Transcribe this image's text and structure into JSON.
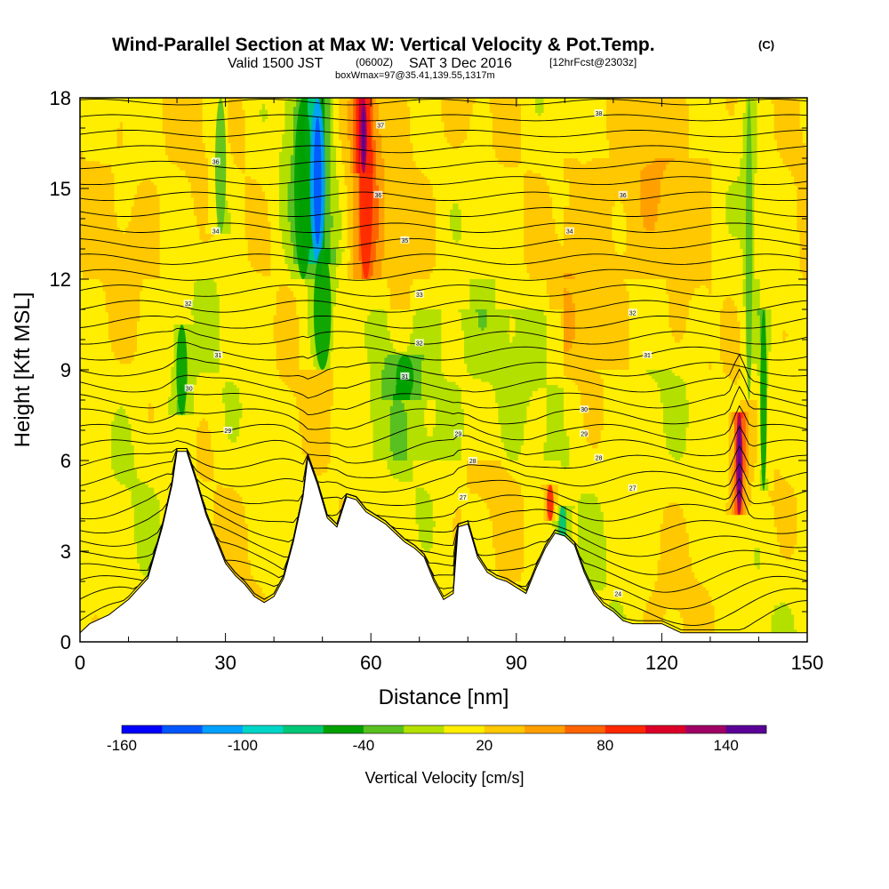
{
  "header": {
    "title": "Wind-Parallel Section at Max W: Vertical Velocity & Pot.Temp.",
    "title_mark": "(C)",
    "valid_prefix": "Valid 1500 JST",
    "valid_utc": "(0600Z)",
    "valid_date": "SAT 3 Dec 2016",
    "forecast_tag": "[12hrFcst@2303z]",
    "box_info": "boxWmax=97@35.41,139.55,1317m"
  },
  "chart_data": {
    "type": "heatmap",
    "title": "Wind-Parallel Section at Max W: Vertical Velocity & Pot.Temp.",
    "xlabel": "Distance [nm]",
    "ylabel": "Height [Kft MSL]",
    "xlim": [
      0,
      150
    ],
    "ylim": [
      0,
      18
    ],
    "x_ticks": [
      "0",
      "30",
      "60",
      "90",
      "120",
      "150"
    ],
    "y_ticks": [
      "0",
      "3",
      "6",
      "9",
      "12",
      "15",
      "18"
    ],
    "colorbar": {
      "label": "Vertical Velocity [cm/s]",
      "tick_labels": [
        "-160",
        "-100",
        "-40",
        "20",
        "80",
        "140"
      ],
      "tick_values": [
        -160,
        -100,
        -40,
        20,
        80,
        140
      ],
      "range": [
        -160,
        160
      ],
      "colors": [
        "#0000ff",
        "#0055ff",
        "#00a0ff",
        "#00d6c8",
        "#00c878",
        "#00a000",
        "#58c020",
        "#b4e000",
        "#ffee00",
        "#ffc800",
        "#ffa000",
        "#ff6400",
        "#ff2800",
        "#dc0028",
        "#a00064",
        "#5a0096"
      ]
    },
    "terrain": {
      "description": "terrain profile (kft MSL) along distance",
      "x": [
        0,
        2,
        6,
        10,
        14,
        17,
        19,
        20,
        22,
        24,
        26,
        28,
        30,
        32,
        34,
        36,
        38,
        40,
        42,
        44,
        46,
        47,
        49,
        51,
        53,
        55,
        57,
        59,
        61,
        63,
        65,
        67,
        69,
        71,
        73,
        75,
        77,
        78,
        80,
        82,
        84,
        86,
        88,
        90,
        92,
        94,
        96,
        98,
        100,
        102,
        104,
        106,
        108,
        110,
        112,
        114,
        116,
        118,
        120,
        124,
        128,
        132,
        136,
        140,
        145,
        150
      ],
      "height": [
        0.3,
        0.6,
        0.9,
        1.4,
        2.1,
        3.8,
        5.2,
        6.3,
        6.3,
        5.3,
        4.2,
        3.4,
        2.6,
        2.2,
        1.9,
        1.5,
        1.3,
        1.5,
        2.1,
        3.3,
        4.8,
        6.1,
        5.2,
        4.1,
        3.8,
        4.8,
        4.7,
        4.3,
        4.1,
        3.9,
        3.6,
        3.3,
        3.1,
        2.8,
        2.0,
        1.4,
        1.6,
        3.8,
        3.9,
        2.8,
        2.3,
        2.1,
        2.0,
        1.8,
        1.6,
        2.4,
        3.1,
        3.6,
        3.5,
        3.2,
        2.3,
        1.6,
        1.2,
        1.0,
        0.7,
        0.6,
        0.6,
        0.6,
        0.6,
        0.3,
        0.3,
        0.3,
        0.3,
        0.3,
        0.3,
        0.3
      ]
    },
    "vertical_velocity_features": [
      {
        "x": 21,
        "y_min": 7.5,
        "y_max": 10.5,
        "width": 2.5,
        "value": -60
      },
      {
        "x": 29,
        "y_min": 13.5,
        "y_max": 18,
        "width": 2.5,
        "value": -40
      },
      {
        "x": 46,
        "y_min": 12,
        "y_max": 18,
        "width": 4,
        "value": -60
      },
      {
        "x": 49,
        "y_min": 12.5,
        "y_max": 18,
        "width": 3.5,
        "value": -110
      },
      {
        "x": 50,
        "y_min": 9,
        "y_max": 13,
        "width": 4,
        "value": -50
      },
      {
        "x": 59,
        "y_min": 12,
        "y_max": 18,
        "width": 3,
        "value": 90
      },
      {
        "x": 58.5,
        "y_min": 15.5,
        "y_max": 18,
        "width": 1.5,
        "value": 120
      },
      {
        "x": 67,
        "y_min": 8.0,
        "y_max": 9.5,
        "width": 4,
        "value": -60
      },
      {
        "x": 99.5,
        "y_min": 3.3,
        "y_max": 4.5,
        "width": 1.5,
        "value": -80
      },
      {
        "x": 97,
        "y_min": 4.0,
        "y_max": 5.2,
        "width": 1.5,
        "value": 80
      },
      {
        "x": 136,
        "y_min": 4.2,
        "y_max": 7.6,
        "width": 1.5,
        "value": 130
      },
      {
        "x": 141,
        "y_min": 5.0,
        "y_max": 11.0,
        "width": 1.5,
        "value": -60
      },
      {
        "x": 138,
        "y_min": 8.0,
        "y_max": 18,
        "width": 1.5,
        "value": -40
      }
    ],
    "isentrope_labels": [
      {
        "x": 22.5,
        "y": 8.4,
        "text": "30"
      },
      {
        "x": 22.3,
        "y": 11.2,
        "text": "32"
      },
      {
        "x": 28.5,
        "y": 9.5,
        "text": "31"
      },
      {
        "x": 28,
        "y": 13.6,
        "text": "34"
      },
      {
        "x": 28,
        "y": 15.9,
        "text": "36"
      },
      {
        "x": 30.5,
        "y": 7.0,
        "text": "29"
      },
      {
        "x": 62,
        "y": 17.1,
        "text": "37"
      },
      {
        "x": 61.5,
        "y": 14.8,
        "text": "36"
      },
      {
        "x": 67,
        "y": 13.3,
        "text": "35"
      },
      {
        "x": 70,
        "y": 11.5,
        "text": "33"
      },
      {
        "x": 70,
        "y": 9.9,
        "text": "32"
      },
      {
        "x": 67,
        "y": 8.8,
        "text": "31"
      },
      {
        "x": 78,
        "y": 6.9,
        "text": "29"
      },
      {
        "x": 81,
        "y": 6.0,
        "text": "28"
      },
      {
        "x": 79,
        "y": 4.8,
        "text": "27"
      },
      {
        "x": 101,
        "y": 13.6,
        "text": "34"
      },
      {
        "x": 107,
        "y": 17.5,
        "text": "38"
      },
      {
        "x": 112,
        "y": 14.8,
        "text": "36"
      },
      {
        "x": 114,
        "y": 10.9,
        "text": "32"
      },
      {
        "x": 117,
        "y": 9.5,
        "text": "31"
      },
      {
        "x": 104,
        "y": 7.7,
        "text": "30"
      },
      {
        "x": 104,
        "y": 6.9,
        "text": "29"
      },
      {
        "x": 107,
        "y": 6.1,
        "text": "28"
      },
      {
        "x": 114,
        "y": 5.1,
        "text": "27"
      },
      {
        "x": 111,
        "y": 1.6,
        "text": "24"
      }
    ]
  }
}
